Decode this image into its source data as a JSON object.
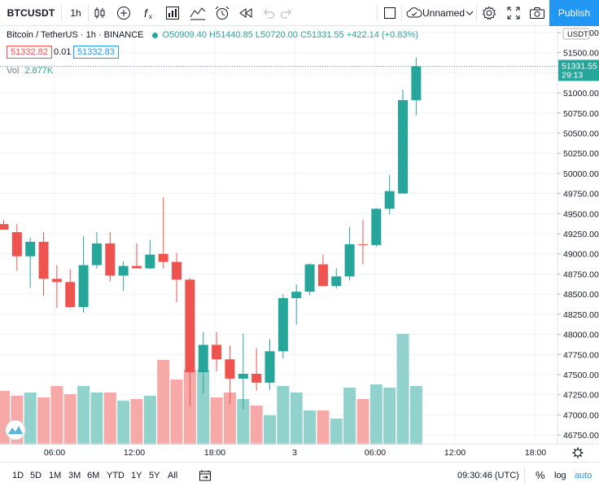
{
  "toolbar": {
    "symbol": "BTCUSDT",
    "interval": "1h",
    "layout_name": "Unnamed",
    "publish_label": "Publish",
    "icons": [
      "candles-icon",
      "add-compare-icon",
      "indicators-icon",
      "templates-icon",
      "line-tools-icon",
      "alert-icon",
      "replay-icon",
      "undo-icon",
      "redo-icon",
      "fullscreen-select-icon",
      "cloud-icon",
      "chevron-down-icon",
      "settings-icon",
      "fullscreen-icon",
      "camera-icon"
    ]
  },
  "legend": {
    "title": "Bitcoin / TetherUS · 1h · BINANCE",
    "ohlc": "O50909.40 H51440.85 L50720.00 C51331.55 +422.14 (+0.83%)",
    "bid": "51332.82",
    "spread": "0.01",
    "ask": "51332.83",
    "volume_label": "Vol",
    "volume_value": "2.877K"
  },
  "price_axis": {
    "currency": "USDT",
    "current_price": "51331.55",
    "countdown": "29:13"
  },
  "bottombar": {
    "ranges": [
      "1D",
      "5D",
      "1M",
      "3M",
      "6M",
      "YTD",
      "1Y",
      "5Y",
      "All"
    ],
    "time": "09:30:46 (UTC)",
    "percent": "%",
    "log": "log",
    "auto": "auto"
  },
  "colors": {
    "up": "#26a69a",
    "down": "#ef5350",
    "vol_up": "#92d2cc",
    "vol_down": "#f7a9a7",
    "accent": "#2196f3"
  },
  "chart_data": {
    "type": "candlestick",
    "x_tick_labels": [
      "06:00",
      "12:00",
      "18:00",
      "3",
      "06:00",
      "12:00",
      "18:00"
    ],
    "y_tick_labels": [
      "46750.00",
      "47000.00",
      "47250.00",
      "47500.00",
      "47750.00",
      "48000.00",
      "48250.00",
      "48500.00",
      "48750.00",
      "49000.00",
      "49250.00",
      "49500.00",
      "49750.00",
      "50000.00",
      "50250.00",
      "50500.00",
      "50750.00",
      "51000.00",
      "51250.00",
      "51500.00",
      "51750.00"
    ],
    "ylim": [
      46640,
      51820
    ],
    "candles": [
      {
        "o": 49370,
        "h": 49420,
        "l": 49300,
        "c": 49300,
        "v": 33
      },
      {
        "o": 49270,
        "h": 49370,
        "l": 48790,
        "c": 48970,
        "v": 30
      },
      {
        "o": 48970,
        "h": 49200,
        "l": 48580,
        "c": 49150,
        "v": 32
      },
      {
        "o": 49150,
        "h": 49270,
        "l": 48480,
        "c": 48690,
        "v": 29
      },
      {
        "o": 48690,
        "h": 48860,
        "l": 48330,
        "c": 48650,
        "v": 36
      },
      {
        "o": 48650,
        "h": 48810,
        "l": 48330,
        "c": 48340,
        "v": 31
      },
      {
        "o": 48340,
        "h": 49220,
        "l": 48270,
        "c": 48860,
        "v": 36
      },
      {
        "o": 48860,
        "h": 49270,
        "l": 48820,
        "c": 49130,
        "v": 32
      },
      {
        "o": 49130,
        "h": 49270,
        "l": 48660,
        "c": 48730,
        "v": 32
      },
      {
        "o": 48730,
        "h": 48910,
        "l": 48540,
        "c": 48850,
        "v": 27
      },
      {
        "o": 48850,
        "h": 49130,
        "l": 48830,
        "c": 48820,
        "v": 28
      },
      {
        "o": 48820,
        "h": 49170,
        "l": 48810,
        "c": 48990,
        "v": 30
      },
      {
        "o": 49000,
        "h": 49700,
        "l": 48820,
        "c": 48900,
        "v": 52
      },
      {
        "o": 48900,
        "h": 49010,
        "l": 48400,
        "c": 48680,
        "v": 40
      },
      {
        "o": 48680,
        "h": 48700,
        "l": 47110,
        "c": 47530,
        "v": 46
      },
      {
        "o": 47530,
        "h": 48030,
        "l": 47260,
        "c": 47870,
        "v": 46
      },
      {
        "o": 47870,
        "h": 48030,
        "l": 47540,
        "c": 47690,
        "v": 29
      },
      {
        "o": 47690,
        "h": 47860,
        "l": 47130,
        "c": 47450,
        "v": 32
      },
      {
        "o": 47450,
        "h": 48010,
        "l": 47070,
        "c": 47510,
        "v": 28
      },
      {
        "o": 47510,
        "h": 47830,
        "l": 47300,
        "c": 47400,
        "v": 24
      },
      {
        "o": 47400,
        "h": 47940,
        "l": 47310,
        "c": 47790,
        "v": 18
      },
      {
        "o": 47790,
        "h": 48500,
        "l": 47700,
        "c": 48450,
        "v": 36
      },
      {
        "o": 48450,
        "h": 48620,
        "l": 48120,
        "c": 48530,
        "v": 32
      },
      {
        "o": 48530,
        "h": 48880,
        "l": 48490,
        "c": 48870,
        "v": 21
      },
      {
        "o": 48870,
        "h": 48990,
        "l": 48600,
        "c": 48600,
        "v": 21
      },
      {
        "o": 48600,
        "h": 48820,
        "l": 48570,
        "c": 48720,
        "v": 16
      },
      {
        "o": 48720,
        "h": 49330,
        "l": 48670,
        "c": 49120,
        "v": 35
      },
      {
        "o": 49120,
        "h": 49420,
        "l": 48870,
        "c": 49110,
        "v": 28
      },
      {
        "o": 49110,
        "h": 49570,
        "l": 49090,
        "c": 49560,
        "v": 37
      },
      {
        "o": 49560,
        "h": 49980,
        "l": 49490,
        "c": 49780,
        "v": 35
      },
      {
        "o": 49750,
        "h": 51040,
        "l": 49750,
        "c": 50910,
        "v": 68
      },
      {
        "o": 50910,
        "h": 51440,
        "l": 50720,
        "c": 51330,
        "v": 36
      }
    ]
  }
}
